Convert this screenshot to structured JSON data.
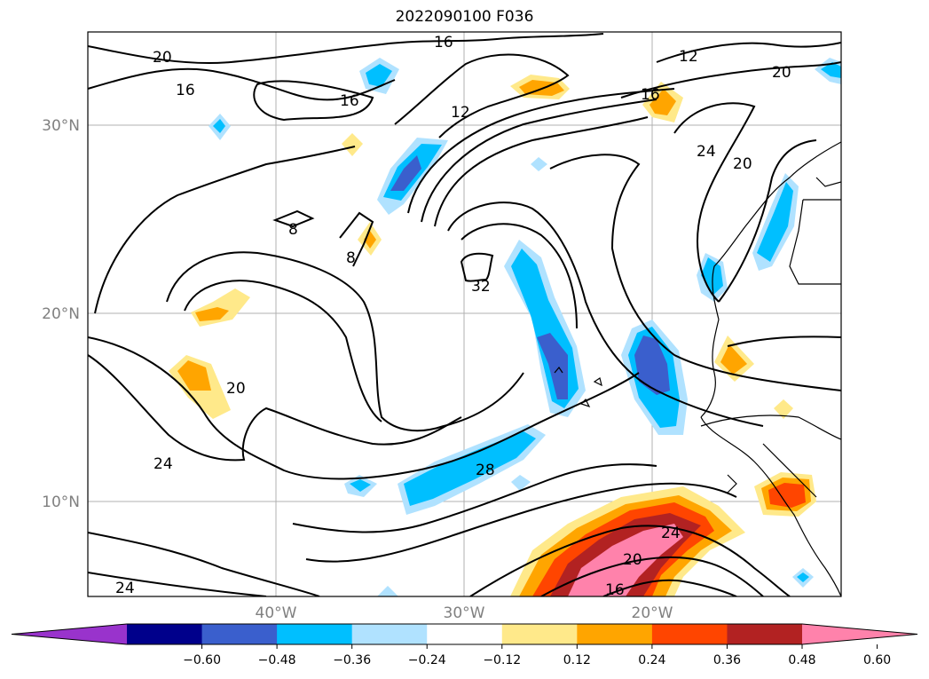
{
  "title": "2022090100 F036",
  "axes": {
    "lat_labels": [
      "30°N",
      "20°N",
      "10°N"
    ],
    "lon_labels": [
      "40°W",
      "30°W",
      "20°W"
    ],
    "grid": true
  },
  "colorbar": {
    "ticks": [
      "−0.60",
      "−0.48",
      "−0.36",
      "−0.24",
      "−0.12",
      "0.12",
      "0.24",
      "0.36",
      "0.48",
      "0.60"
    ],
    "colors": [
      "#9933cc",
      "#00008b",
      "#3a5fcd",
      "#00bfff",
      "#b0e2ff",
      "#ffffff",
      "#ffe98a",
      "#ffa500",
      "#ff4500",
      "#b22222",
      "#ff82ab"
    ],
    "extend": "both"
  },
  "contour_labels": [
    "20",
    "16",
    "16",
    "12",
    "16",
    "16",
    "12",
    "20",
    "24",
    "20",
    "8",
    "8",
    "32",
    "20",
    "24",
    "28",
    "24",
    "20",
    "16",
    "24"
  ]
}
